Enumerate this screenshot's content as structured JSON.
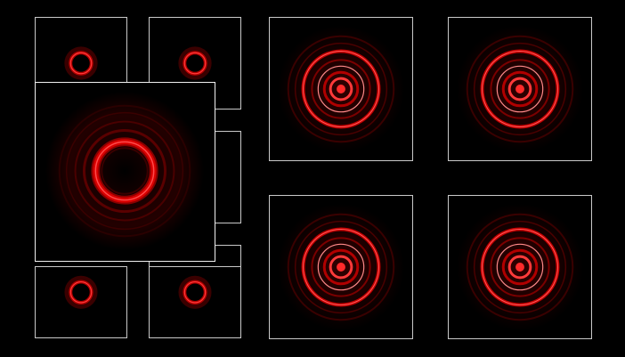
{
  "theme": {
    "background": "#000000",
    "frame_border": "#c9c9c9",
    "ring_bright": "#ff2a2a",
    "ring_core": "#c00000",
    "ring_dim": "#5a0000",
    "ring_highlight": "#ff8a8a"
  },
  "panels": [
    {
      "id": "thumb-tl-1",
      "pattern": "small-ring",
      "type": "thumbnail"
    },
    {
      "id": "thumb-tl-2",
      "pattern": "small-ring",
      "type": "thumbnail"
    },
    {
      "id": "thumb-mid-1",
      "pattern": "empty",
      "type": "thumbnail"
    },
    {
      "id": "thumb-mid-2",
      "pattern": "empty",
      "type": "thumbnail"
    },
    {
      "id": "thumb-bl-1",
      "pattern": "small-ring",
      "type": "thumbnail"
    },
    {
      "id": "thumb-bl-2",
      "pattern": "small-ring",
      "type": "thumbnail"
    },
    {
      "id": "main-preview",
      "pattern": "thick-ring",
      "type": "enlarged"
    },
    {
      "id": "grid-1",
      "pattern": "concentric-rings",
      "type": "tile"
    },
    {
      "id": "grid-2",
      "pattern": "concentric-rings",
      "type": "tile"
    },
    {
      "id": "grid-3",
      "pattern": "concentric-rings",
      "type": "tile"
    },
    {
      "id": "grid-4",
      "pattern": "concentric-rings",
      "type": "tile"
    }
  ]
}
